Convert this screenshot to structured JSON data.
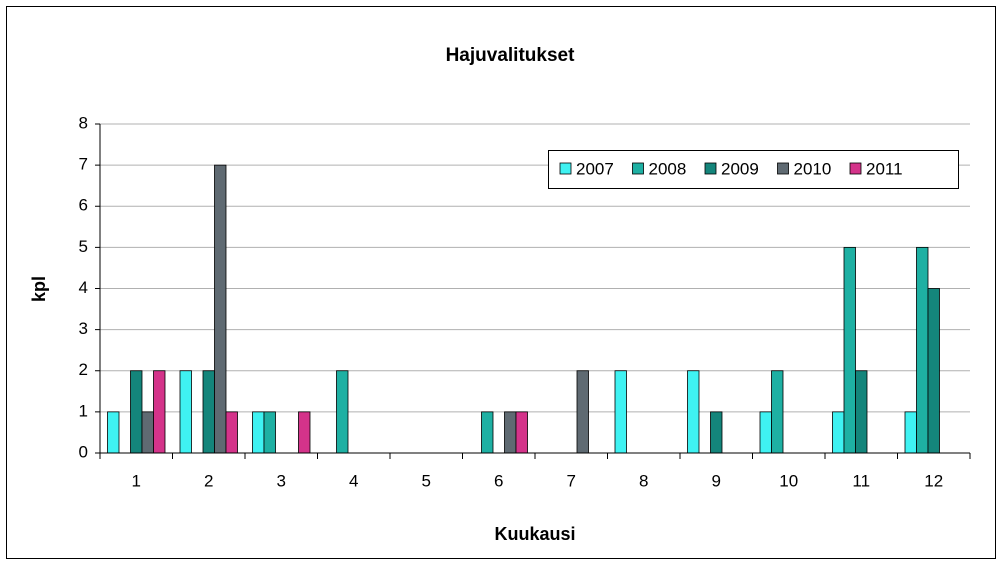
{
  "chart_data": {
    "type": "bar",
    "title": "Hajuvalitukset",
    "x_label": "Kuukausi",
    "y_label": "kpl",
    "categories": [
      "1",
      "2",
      "3",
      "4",
      "5",
      "6",
      "7",
      "8",
      "9",
      "10",
      "11",
      "12"
    ],
    "series": [
      {
        "name": "2007",
        "color": "#3ff2f2",
        "values": [
          1,
          2,
          1,
          0,
          0,
          0,
          0,
          2,
          2,
          1,
          1,
          1
        ]
      },
      {
        "name": "2008",
        "color": "#1eb0a3",
        "values": [
          0,
          0,
          1,
          2,
          0,
          1,
          0,
          0,
          0,
          2,
          5,
          5
        ]
      },
      {
        "name": "2009",
        "color": "#14857b",
        "values": [
          2,
          2,
          0,
          0,
          0,
          0,
          0,
          0,
          1,
          0,
          2,
          4
        ]
      },
      {
        "name": "2010",
        "color": "#5f6a72",
        "values": [
          1,
          7,
          0,
          0,
          0,
          1,
          2,
          0,
          0,
          0,
          0,
          0
        ]
      },
      {
        "name": "2011",
        "color": "#d4338a",
        "values": [
          2,
          1,
          1,
          0,
          0,
          1,
          0,
          0,
          0,
          0,
          0,
          0
        ]
      }
    ],
    "ylim": [
      0,
      8
    ],
    "yticks": [
      0,
      1,
      2,
      3,
      4,
      5,
      6,
      7,
      8
    ],
    "grid": true,
    "legend": "top-right"
  }
}
